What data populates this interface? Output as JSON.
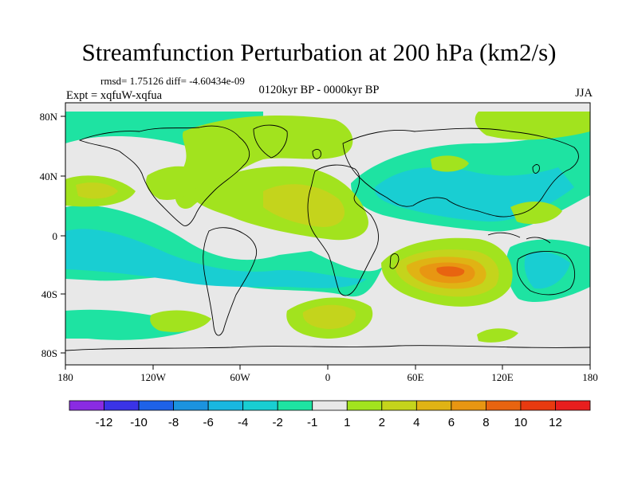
{
  "title": "Streamfunction Perturbation at 200 hPa (km2/s)",
  "stats": "rmsd= 1.75126 diff= -4.60434e-09",
  "period": "0120kyr BP - 0000kyr BP",
  "experiment": "Expt = xqfuW-xqfua",
  "season": "JJA",
  "lat_ticks": [
    "80N",
    "40N",
    "0",
    "40S",
    "80S"
  ],
  "lon_ticks": [
    "180",
    "120W",
    "60W",
    "0",
    "60E",
    "120E",
    "180"
  ],
  "colorbar": {
    "labels": [
      "-12",
      "-10",
      "-8",
      "-6",
      "-4",
      "-2",
      "-1",
      "1",
      "2",
      "4",
      "6",
      "8",
      "10",
      "12"
    ],
    "colors": [
      "#8a2be2",
      "#3a33e6",
      "#1e62e8",
      "#1b93df",
      "#19b7e0",
      "#19ced2",
      "#1ee3a2",
      "#e8e8e8",
      "#a2e31e",
      "#c4d41c",
      "#e0b314",
      "#e89612",
      "#e86410",
      "#e83a10",
      "#e81e1e"
    ]
  },
  "map_colors": {
    "neutral": "#e8e8e8",
    "plus1": "#a2e31e",
    "plus2": "#c4d41c",
    "plus4": "#e0b314",
    "plus6": "#e89612",
    "plus8": "#e86410",
    "minus1": "#1ee3a2",
    "minus2": "#19ced2",
    "minus4": "#19b7e0"
  }
}
